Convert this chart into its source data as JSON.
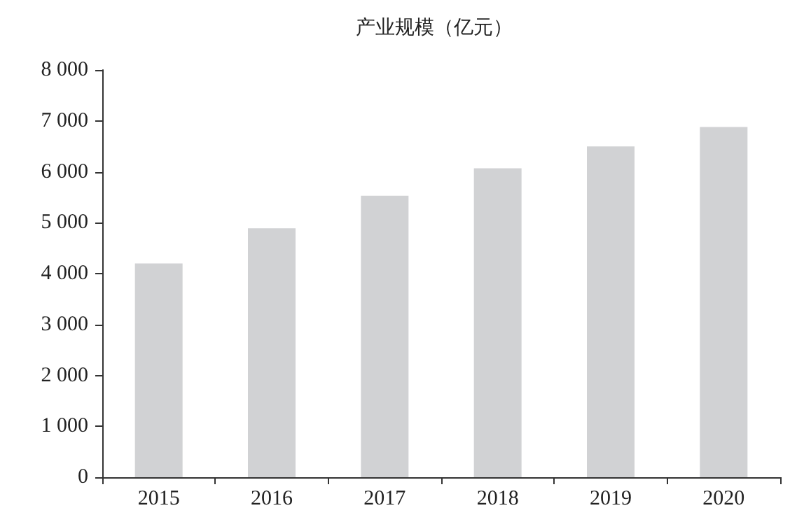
{
  "chart_data": {
    "type": "bar",
    "title": "产业规模（亿元）",
    "categories": [
      "2015",
      "2016",
      "2017",
      "2018",
      "2019",
      "2020"
    ],
    "values": [
      4200,
      4890,
      5530,
      6070,
      6500,
      6880
    ],
    "color": "#d1d2d4",
    "ylim": [
      0,
      8000
    ],
    "yticks": [
      {
        "value": 0,
        "label": "0"
      },
      {
        "value": 1000,
        "label": "1 000"
      },
      {
        "value": 2000,
        "label": "2 000"
      },
      {
        "value": 3000,
        "label": "3 000"
      },
      {
        "value": 4000,
        "label": "4 000"
      },
      {
        "value": 5000,
        "label": "5 000"
      },
      {
        "value": 6000,
        "label": "6 000"
      },
      {
        "value": 7000,
        "label": "7 000"
      },
      {
        "value": 8000,
        "label": "8 000"
      }
    ],
    "grid": false
  }
}
